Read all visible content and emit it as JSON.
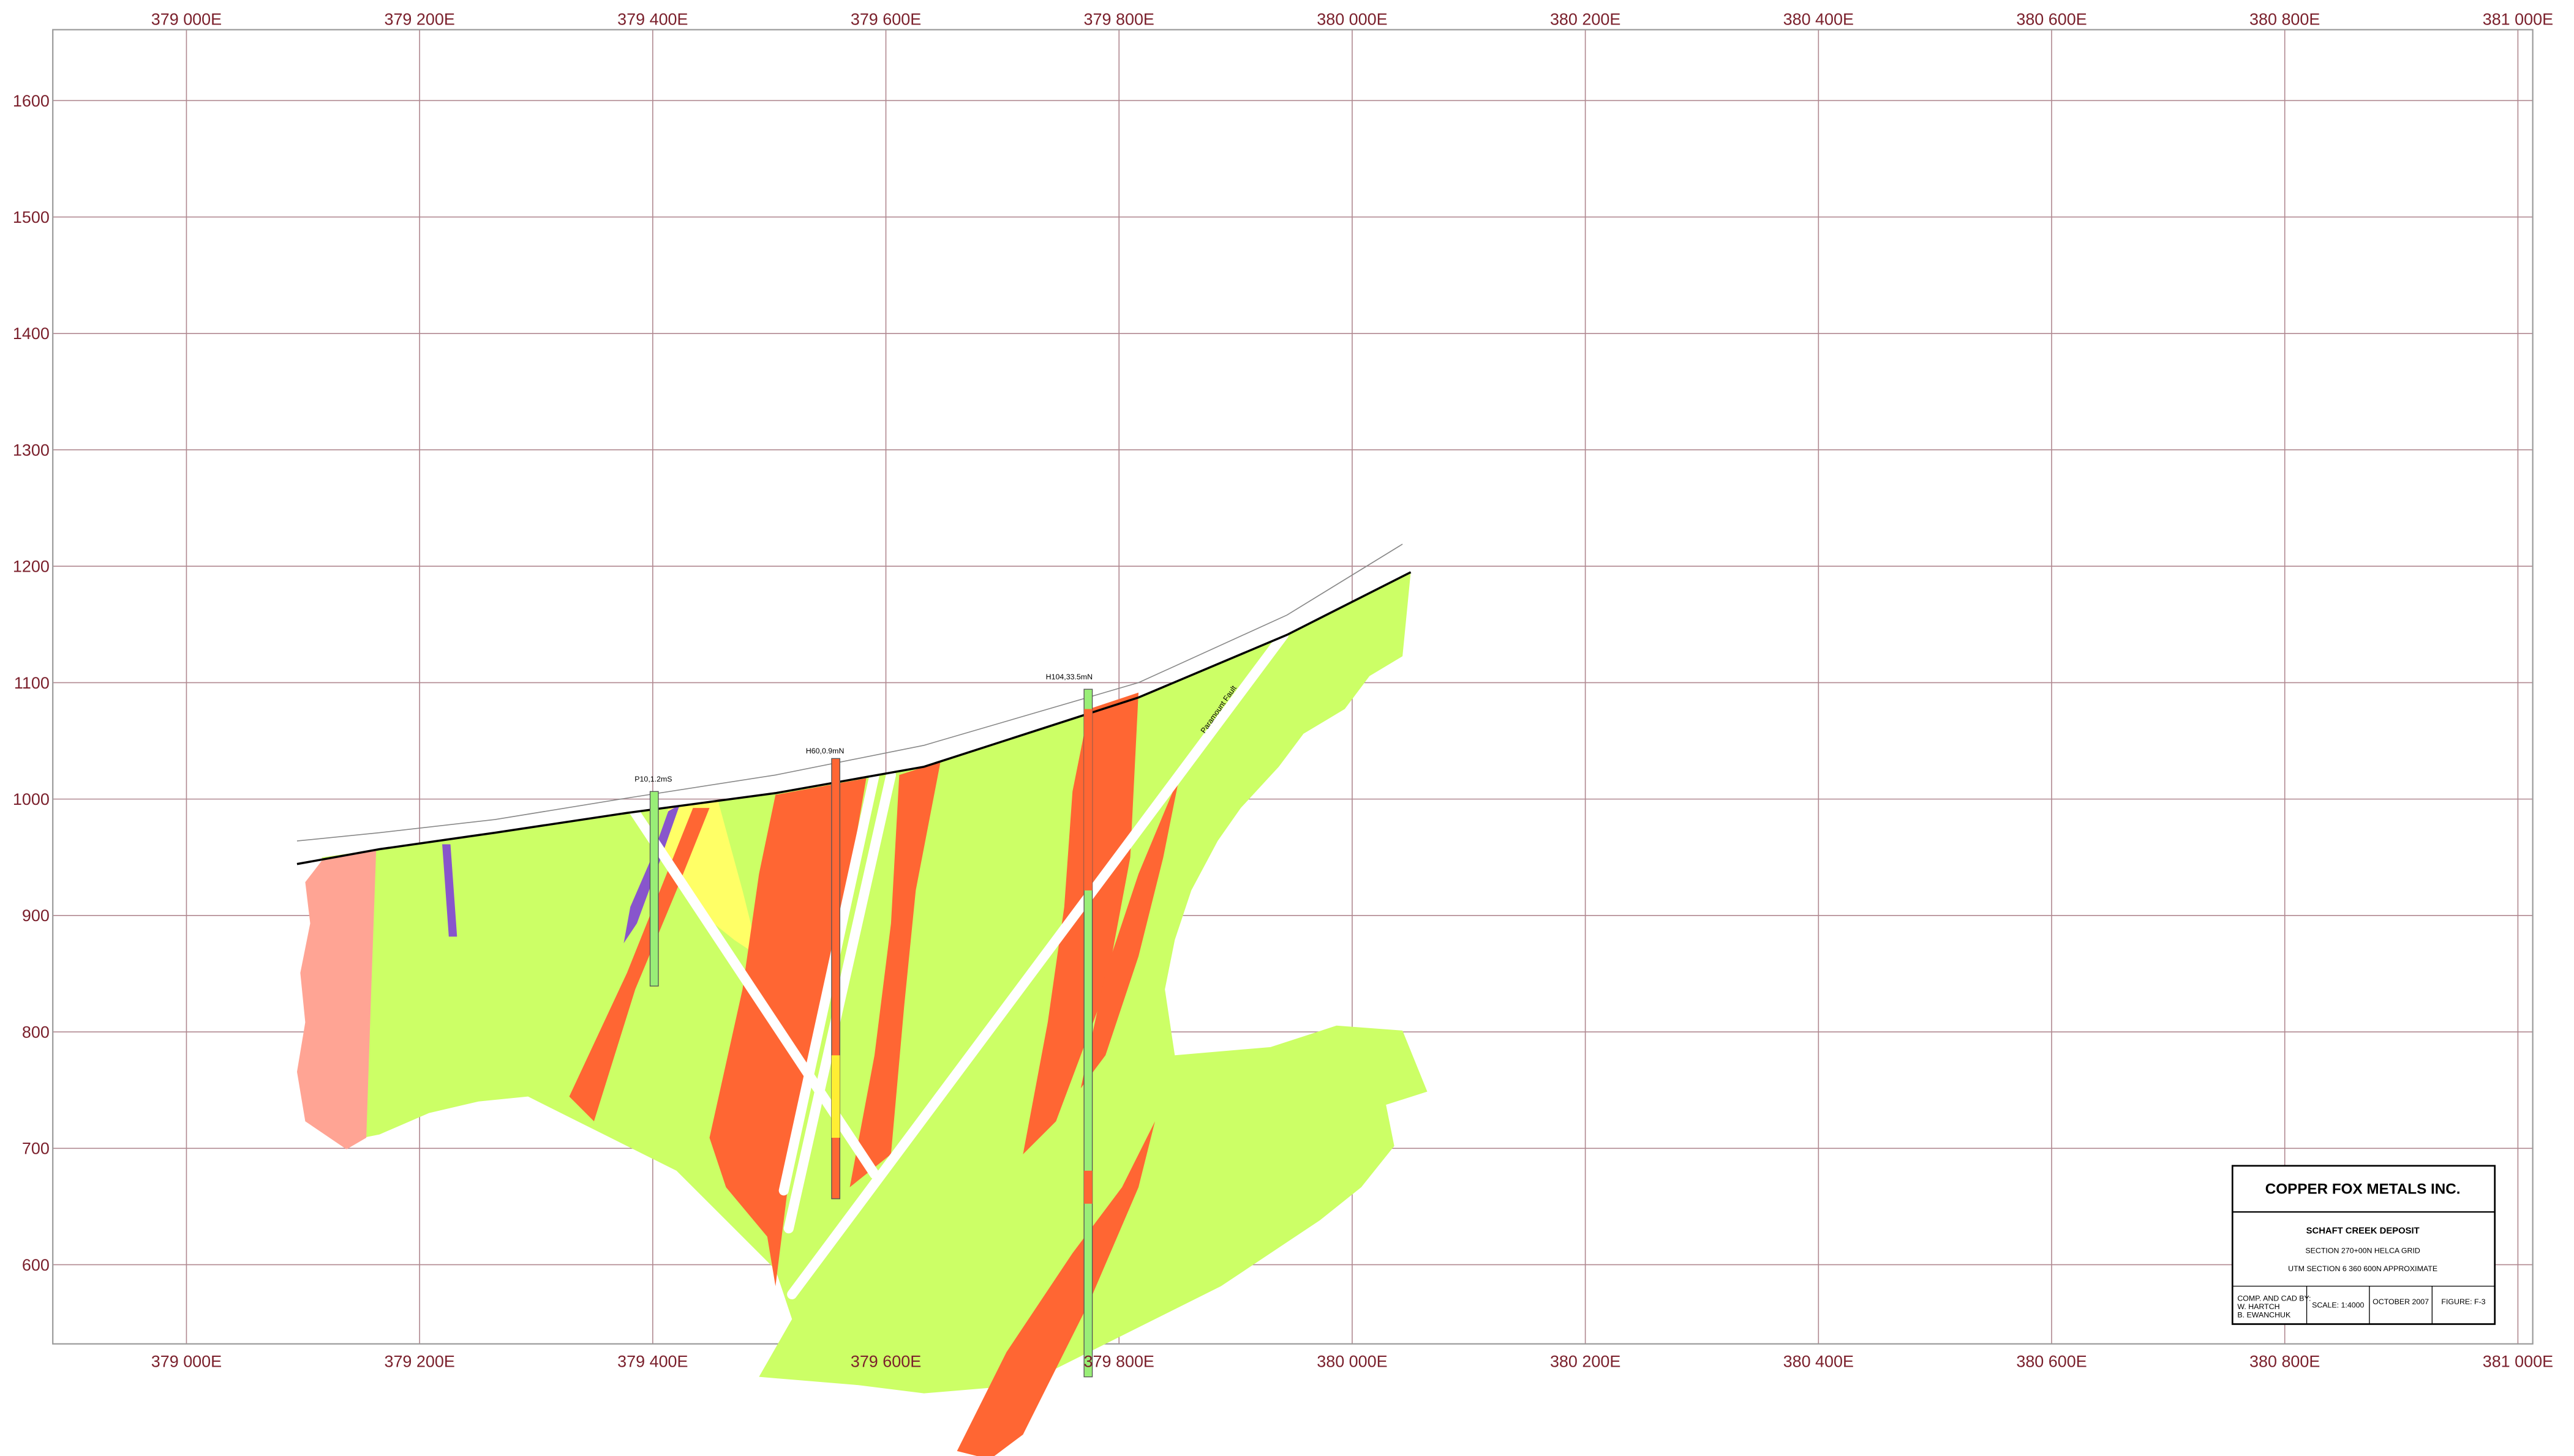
{
  "x_axis": {
    "ticks": [
      {
        "value": 379000,
        "label": "379 000E"
      },
      {
        "value": 379200,
        "label": "379 200E"
      },
      {
        "value": 379400,
        "label": "379 400E"
      },
      {
        "value": 379600,
        "label": "379 600E"
      },
      {
        "value": 379800,
        "label": "379 800E"
      },
      {
        "value": 380000,
        "label": "380 000E"
      },
      {
        "value": 380200,
        "label": "380 200E"
      },
      {
        "value": 380400,
        "label": "380 400E"
      },
      {
        "value": 380600,
        "label": "380 600E"
      },
      {
        "value": 380800,
        "label": "380 800E"
      },
      {
        "value": 381000,
        "label": "381 000E"
      }
    ]
  },
  "y_axis": {
    "ticks": [
      600,
      700,
      800,
      900,
      1000,
      1100,
      1200,
      1300,
      1400,
      1500,
      1600
    ]
  },
  "drill_holes": [
    {
      "label": "P10,1.2mS"
    },
    {
      "label": "H60,0.9mN"
    },
    {
      "label": "H104,33.5mN"
    }
  ],
  "fault_label": "Paramount Fault",
  "title_block": {
    "company": "COPPER FOX METALS INC.",
    "deposit": "SCHAFT CREEK DEPOSIT",
    "section": "SECTION 270+00N HELCA GRID",
    "utm": "UTM SECTION 6 360 600N APPROXIMATE",
    "credits": [
      "COMP. AND CAD BY:",
      "W. HARTCH",
      "B. EWANCHUK"
    ],
    "scale": "SCALE: 1:4000",
    "date": "OCTOBER 2007",
    "figure": "FIGURE: F-3"
  }
}
